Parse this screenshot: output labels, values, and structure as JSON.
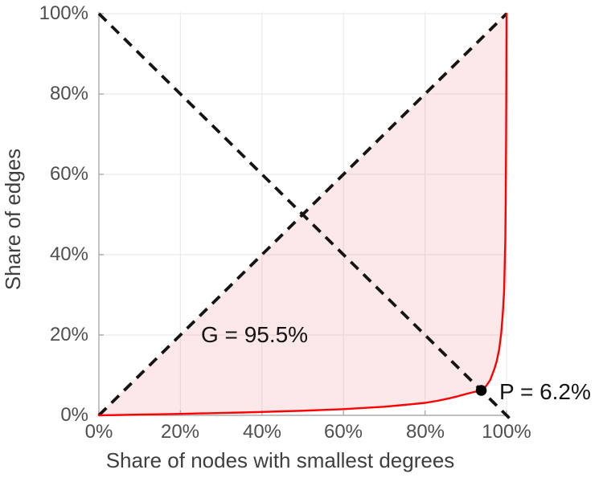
{
  "figure": {
    "xlabel": "Share of nodes with smallest degrees",
    "ylabel": "Share of edges",
    "x_ticks": [
      "0%",
      "20%",
      "40%",
      "60%",
      "80%",
      "100%"
    ],
    "y_ticks": [
      "0%",
      "20%",
      "40%",
      "60%",
      "80%",
      "100%"
    ],
    "annotations": {
      "gini": "G = 95.5%",
      "point_p": "P = 6.2%"
    }
  },
  "chart_data": {
    "type": "line",
    "title": "",
    "xlabel": "Share of nodes with smallest degrees",
    "ylabel": "Share of edges",
    "xlim": [
      0,
      100.6
    ],
    "ylim": [
      0,
      100.4
    ],
    "x_tick_values": [
      0,
      20,
      40,
      60,
      80,
      100
    ],
    "y_tick_values": [
      0,
      20,
      40,
      60,
      80,
      100
    ],
    "grid": true,
    "legend": "none",
    "gini_percent": 95.5,
    "p_percent": 6.2,
    "point_P": {
      "x": 93.8,
      "y": 6.2,
      "label": "P = 6.2%"
    },
    "annotation_G": {
      "x": 25,
      "y": 21,
      "label": "G = 95.5%"
    },
    "series": [
      {
        "name": "lorenz-curve",
        "style": "solid",
        "color": "#ff0000",
        "points": [
          [
            0,
            0
          ],
          [
            5,
            0.08
          ],
          [
            10,
            0.17
          ],
          [
            15,
            0.26
          ],
          [
            20,
            0.36
          ],
          [
            25,
            0.47
          ],
          [
            30,
            0.58
          ],
          [
            35,
            0.7
          ],
          [
            40,
            0.84
          ],
          [
            45,
            1.0
          ],
          [
            50,
            1.15
          ],
          [
            55,
            1.35
          ],
          [
            60,
            1.55
          ],
          [
            65,
            1.85
          ],
          [
            70,
            2.15
          ],
          [
            75,
            2.6
          ],
          [
            80,
            3.1
          ],
          [
            83,
            3.6
          ],
          [
            86,
            4.25
          ],
          [
            88,
            4.75
          ],
          [
            90,
            5.3
          ],
          [
            92,
            5.8
          ],
          [
            93,
            6.0
          ],
          [
            93.8,
            6.2
          ],
          [
            95,
            7.3
          ],
          [
            96,
            8.8
          ],
          [
            97,
            11.5
          ],
          [
            97.6,
            13.5
          ],
          [
            98.2,
            16.5
          ],
          [
            98.7,
            20.5
          ],
          [
            99.1,
            25.5
          ],
          [
            99.4,
            31
          ],
          [
            99.7,
            44
          ],
          [
            99.8,
            55
          ],
          [
            99.9,
            70
          ],
          [
            99.96,
            85
          ],
          [
            100,
            100
          ]
        ]
      },
      {
        "name": "equality-diagonal",
        "style": "dashed",
        "color": "#141414",
        "points": [
          [
            0,
            0
          ],
          [
            100,
            100
          ]
        ]
      },
      {
        "name": "anti-diagonal",
        "style": "dashed",
        "color": "#141414",
        "points": [
          [
            0,
            100
          ],
          [
            100,
            0
          ]
        ]
      }
    ],
    "shaded_area": {
      "between": [
        "equality-diagonal",
        "lorenz-curve"
      ],
      "color": "#f0414b",
      "opacity": 0.12
    },
    "colors": {
      "curve": "#ff0000",
      "dashed_line": "#141414",
      "point": "#000000",
      "fill": "#f0414b",
      "grid": "#ebebeb",
      "spine": "#ababab",
      "tick_label": "#4f4f4f",
      "axis_label": "#3f3f3f",
      "annotation": "#141414"
    }
  }
}
